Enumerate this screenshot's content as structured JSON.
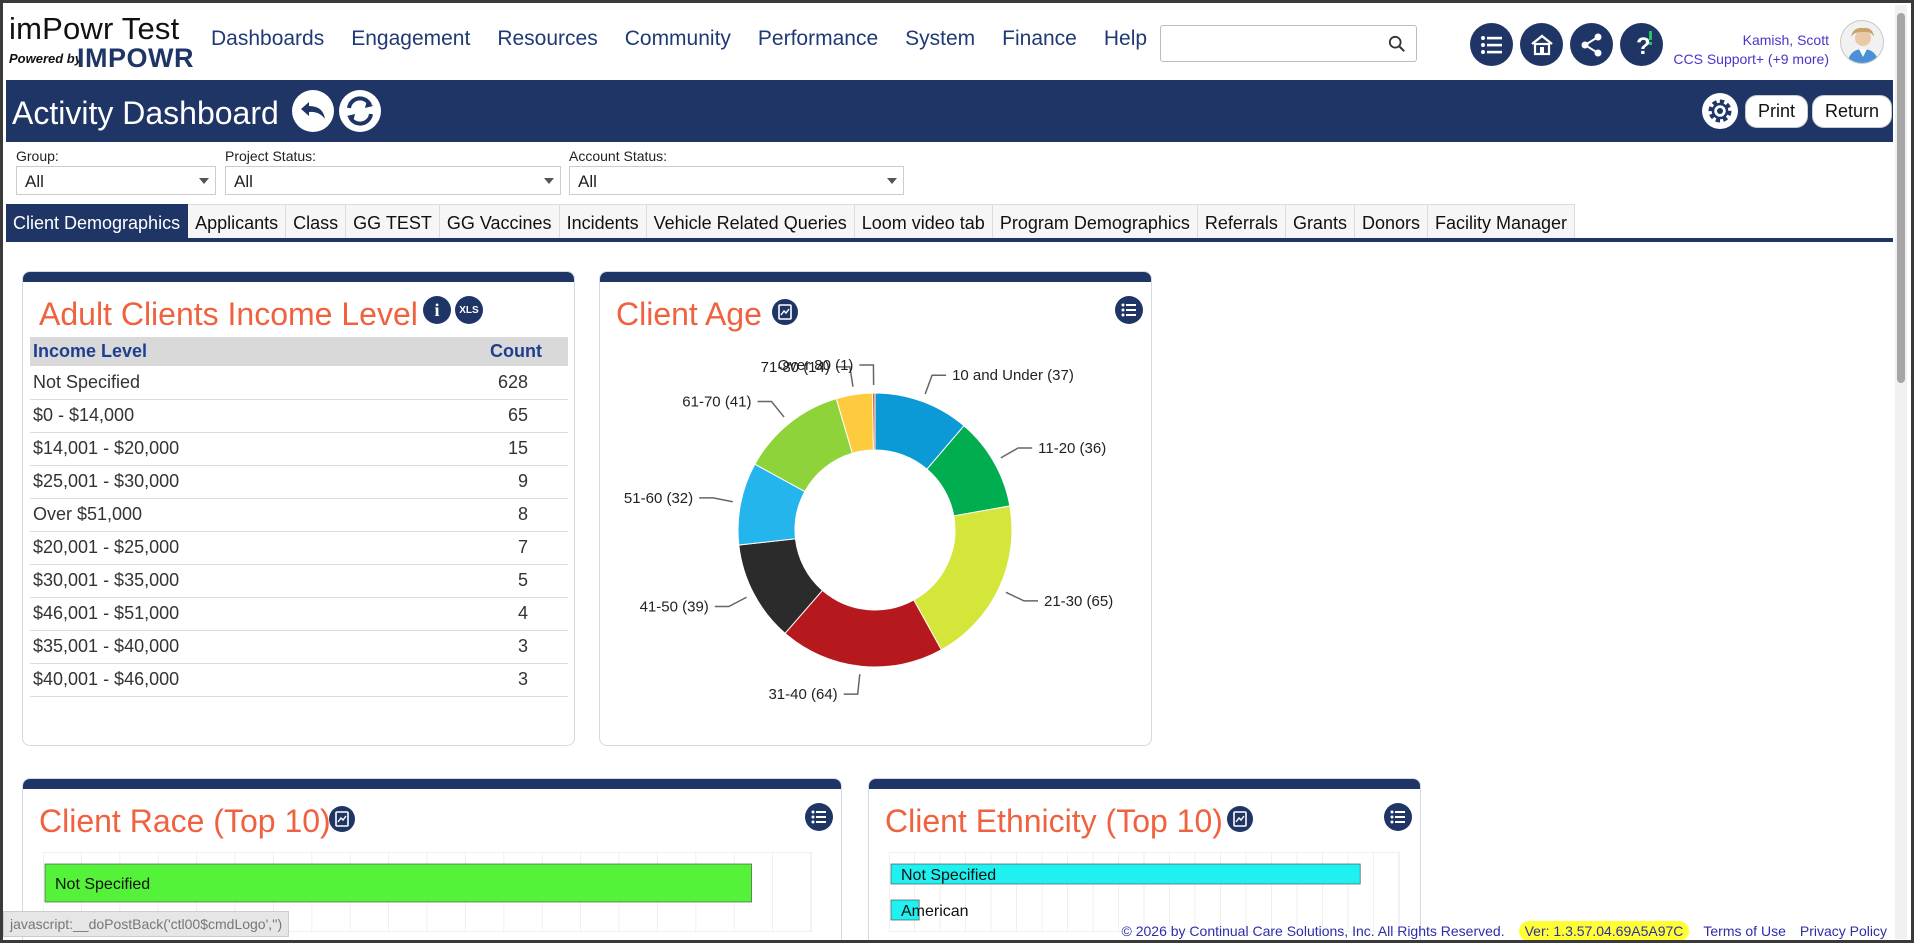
{
  "app": {
    "name": "imPowr Test",
    "powered_by": "Powered by",
    "brand": "IMPOWR"
  },
  "menu": [
    "Dashboards",
    "Engagement",
    "Resources",
    "Community",
    "Performance",
    "System",
    "Finance",
    "Help"
  ],
  "search": {
    "value": "",
    "placeholder": ""
  },
  "toolbar_icons": [
    "list-icon",
    "home-icon",
    "share-icon",
    "help-icon"
  ],
  "user": {
    "name": "Kamish, Scott",
    "role": "CCS Support+ (+9 more)"
  },
  "header": {
    "title": "Activity Dashboard",
    "print_label": "Print",
    "return_label": "Return"
  },
  "filters": [
    {
      "label": "Group:",
      "value": "All"
    },
    {
      "label": "Project Status:",
      "value": "All"
    },
    {
      "label": "Account Status:",
      "value": "All"
    }
  ],
  "tabs": [
    "Client Demographics",
    "Applicants",
    "Class",
    "GG TEST",
    "GG Vaccines",
    "Incidents",
    "Vehicle Related Queries",
    "Loom video tab",
    "Program Demographics",
    "Referrals",
    "Grants",
    "Donors",
    "Facility Manager"
  ],
  "active_tab": "Client Demographics",
  "income_card": {
    "title": "Adult Clients Income Level",
    "xls_label": "XLS",
    "info_label": "i",
    "columns": [
      "Income Level",
      "Count"
    ],
    "rows": [
      [
        "Not Specified",
        "628"
      ],
      [
        "$0 - $14,000",
        "65"
      ],
      [
        "$14,001 - $20,000",
        "15"
      ],
      [
        "$25,001 - $30,000",
        "9"
      ],
      [
        "Over $51,000",
        "8"
      ],
      [
        "$20,001 - $25,000",
        "7"
      ],
      [
        "$30,001 - $35,000",
        "5"
      ],
      [
        "$46,001 - $51,000",
        "4"
      ],
      [
        "$35,001 - $40,000",
        "3"
      ],
      [
        "$40,001 - $46,000",
        "3"
      ]
    ]
  },
  "age_card": {
    "title": "Client Age"
  },
  "race_card": {
    "title": "Client Race (Top 10)"
  },
  "ethnicity_card": {
    "title": "Client Ethnicity (Top 10)"
  },
  "chart_data": [
    {
      "type": "pie",
      "title": "Client Age",
      "donut": true,
      "categories": [
        "10 and Under",
        "11-20",
        "21-30",
        "31-40",
        "41-50",
        "51-60",
        "61-70",
        "71-80",
        "Over 80"
      ],
      "values": [
        37,
        36,
        65,
        64,
        39,
        32,
        41,
        14,
        1
      ],
      "labels": [
        "10 and Under (37)",
        "11-20 (36)",
        "21-30 (65)",
        "31-40 (64)",
        "41-50 (39)",
        "51-60 (32)",
        "61-70 (41)",
        "71-80 (14)",
        "Over 80 (1)"
      ],
      "colors": [
        "#0b9ad6",
        "#00ad4f",
        "#d4e63a",
        "#b5191e",
        "#2b2b2b",
        "#23b5ec",
        "#8fd33a",
        "#ffcb3e",
        "#f05a28"
      ]
    },
    {
      "type": "bar",
      "title": "Client Race (Top 10)",
      "orientation": "horizontal",
      "categories": [
        "Not Specified"
      ],
      "values": [
        100
      ],
      "colors": [
        "#55f23a"
      ]
    },
    {
      "type": "bar",
      "title": "Client Ethnicity (Top 10)",
      "orientation": "horizontal",
      "categories": [
        "Not Specified",
        "American"
      ],
      "values": [
        100,
        6
      ],
      "colors": [
        "#1ff0f0"
      ]
    }
  ],
  "statusbar": "javascript:__doPostBack('ctl00$cmdLogo','')",
  "footer": {
    "copyright": "© 2026 by Continual Care Solutions, Inc. All Rights Reserved.",
    "version": "Ver: 1.3.57.04.69A5A97C",
    "terms": "Terms of Use",
    "privacy": "Privacy Policy"
  }
}
